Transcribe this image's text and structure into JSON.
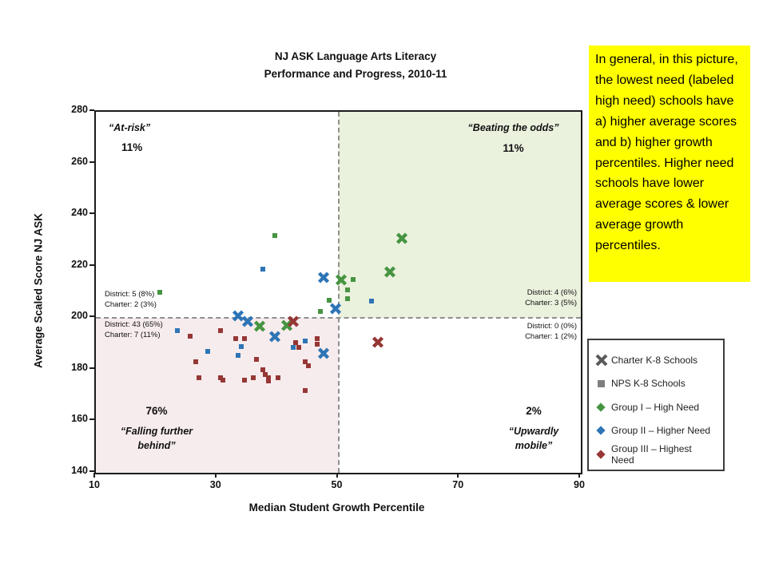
{
  "chart_data": {
    "type": "scatter",
    "title_line1": "NJ ASK Language Arts Literacy",
    "title_line2": "Performance and Progress, 2010-11",
    "xlabel": "Median Student Growth Percentile",
    "ylabel": "Average Scaled Score NJ ASK",
    "xlim": [
      10,
      90
    ],
    "ylim": [
      140,
      280
    ],
    "x_ticks": [
      10,
      30,
      50,
      70,
      90
    ],
    "y_ticks": [
      280,
      260,
      240,
      220,
      200,
      180,
      160,
      140
    ],
    "reference_lines": {
      "x": 50,
      "y": 200
    },
    "quadrant_fill": {
      "top_right": "#eaf1dd",
      "bottom_left": "#f7eced"
    },
    "group_colors": {
      "I": "#469441",
      "II": "#2e75b6",
      "III": "#953735"
    },
    "marker_types": {
      "charter": "x",
      "nps": "square"
    },
    "points": [
      {
        "x": 47.5,
        "y": 215,
        "group": "II",
        "sector": "charter"
      },
      {
        "x": 49.5,
        "y": 203,
        "group": "II",
        "sector": "charter"
      },
      {
        "x": 33.5,
        "y": 200,
        "group": "II",
        "sector": "charter"
      },
      {
        "x": 35,
        "y": 198,
        "group": "II",
        "sector": "charter"
      },
      {
        "x": 39.5,
        "y": 192,
        "group": "II",
        "sector": "charter"
      },
      {
        "x": 47.5,
        "y": 185.5,
        "group": "II",
        "sector": "charter"
      },
      {
        "x": 50.5,
        "y": 214,
        "group": "I",
        "sector": "charter"
      },
      {
        "x": 60.5,
        "y": 230,
        "group": "I",
        "sector": "charter"
      },
      {
        "x": 58.5,
        "y": 217,
        "group": "I",
        "sector": "charter"
      },
      {
        "x": 37,
        "y": 196,
        "group": "I",
        "sector": "charter"
      },
      {
        "x": 41.5,
        "y": 196.5,
        "group": "I",
        "sector": "charter"
      },
      {
        "x": 42.5,
        "y": 198,
        "group": "III",
        "sector": "charter"
      },
      {
        "x": 56.5,
        "y": 190,
        "group": "III",
        "sector": "charter"
      },
      {
        "x": 20.5,
        "y": 210,
        "group": "I",
        "sector": "nps"
      },
      {
        "x": 39.5,
        "y": 232,
        "group": "I",
        "sector": "nps"
      },
      {
        "x": 52.5,
        "y": 215,
        "group": "I",
        "sector": "nps"
      },
      {
        "x": 51.5,
        "y": 211,
        "group": "I",
        "sector": "nps"
      },
      {
        "x": 51.5,
        "y": 207.5,
        "group": "I",
        "sector": "nps"
      },
      {
        "x": 48.5,
        "y": 207,
        "group": "I",
        "sector": "nps"
      },
      {
        "x": 47,
        "y": 202.5,
        "group": "I",
        "sector": "nps"
      },
      {
        "x": 37.5,
        "y": 219,
        "group": "II",
        "sector": "nps"
      },
      {
        "x": 55.5,
        "y": 206.5,
        "group": "II",
        "sector": "nps"
      },
      {
        "x": 23.5,
        "y": 195,
        "group": "II",
        "sector": "nps"
      },
      {
        "x": 28.5,
        "y": 187,
        "group": "II",
        "sector": "nps"
      },
      {
        "x": 33.5,
        "y": 185.5,
        "group": "II",
        "sector": "nps"
      },
      {
        "x": 34,
        "y": 189,
        "group": "II",
        "sector": "nps"
      },
      {
        "x": 42.5,
        "y": 188.5,
        "group": "II",
        "sector": "nps"
      },
      {
        "x": 44.5,
        "y": 191,
        "group": "II",
        "sector": "nps"
      },
      {
        "x": 30.5,
        "y": 195,
        "group": "III",
        "sector": "nps"
      },
      {
        "x": 25.5,
        "y": 193,
        "group": "III",
        "sector": "nps"
      },
      {
        "x": 33,
        "y": 192,
        "group": "III",
        "sector": "nps"
      },
      {
        "x": 34.5,
        "y": 192,
        "group": "III",
        "sector": "nps"
      },
      {
        "x": 43,
        "y": 190.5,
        "group": "III",
        "sector": "nps"
      },
      {
        "x": 43.5,
        "y": 188.5,
        "group": "III",
        "sector": "nps"
      },
      {
        "x": 46.5,
        "y": 192,
        "group": "III",
        "sector": "nps"
      },
      {
        "x": 46.5,
        "y": 190,
        "group": "III",
        "sector": "nps"
      },
      {
        "x": 26.5,
        "y": 183,
        "group": "III",
        "sector": "nps"
      },
      {
        "x": 36.5,
        "y": 184,
        "group": "III",
        "sector": "nps"
      },
      {
        "x": 44.5,
        "y": 183,
        "group": "III",
        "sector": "nps"
      },
      {
        "x": 45,
        "y": 181.5,
        "group": "III",
        "sector": "nps"
      },
      {
        "x": 37.5,
        "y": 180,
        "group": "III",
        "sector": "nps"
      },
      {
        "x": 38,
        "y": 178,
        "group": "III",
        "sector": "nps"
      },
      {
        "x": 27,
        "y": 177,
        "group": "III",
        "sector": "nps"
      },
      {
        "x": 30.5,
        "y": 177,
        "group": "III",
        "sector": "nps"
      },
      {
        "x": 31,
        "y": 176,
        "group": "III",
        "sector": "nps"
      },
      {
        "x": 34.5,
        "y": 176,
        "group": "III",
        "sector": "nps"
      },
      {
        "x": 36,
        "y": 177,
        "group": "III",
        "sector": "nps"
      },
      {
        "x": 38.5,
        "y": 177,
        "group": "III",
        "sector": "nps"
      },
      {
        "x": 38.5,
        "y": 175.5,
        "group": "III",
        "sector": "nps"
      },
      {
        "x": 40,
        "y": 177,
        "group": "III",
        "sector": "nps"
      },
      {
        "x": 44.5,
        "y": 172,
        "group": "III",
        "sector": "nps"
      }
    ]
  },
  "quadrants": {
    "top_left": {
      "label": "“At-risk”",
      "pct": "11%"
    },
    "top_right": {
      "label": "“Beating the odds”",
      "pct": "11%"
    },
    "bottom_left": {
      "pct": "76%",
      "label_line1": "“Falling further",
      "label_line2": "behind”"
    },
    "bottom_right": {
      "pct": "2%",
      "label_line1": "“Upwardly",
      "label_line2": "mobile”"
    }
  },
  "counts": {
    "left_above": [
      "District: 5 (8%)",
      "Charter: 2 (3%)"
    ],
    "left_below": [
      "District: 43 (65%)",
      "Charter: 7 (11%)"
    ],
    "right_above": [
      "District: 4 (6%)",
      "Charter: 3 (5%)"
    ],
    "right_below": [
      "District: 0 (0%)",
      "Charter: 1 (2%)"
    ]
  },
  "legend": {
    "items": [
      {
        "marker": "x",
        "color": "#595959",
        "label": "Charter K-8 Schools"
      },
      {
        "marker": "square",
        "color": "#7f7f7f",
        "label": "NPS K-8 Schools"
      },
      {
        "marker": "diamond",
        "color": "#469441",
        "label": "Group I – High Need"
      },
      {
        "marker": "diamond",
        "color": "#2e75b6",
        "label": "Group II – Higher Need"
      },
      {
        "marker": "diamond",
        "color": "#953735",
        "label": "Group III – Highest Need"
      }
    ]
  },
  "note": {
    "background": "#ffff00",
    "text": "In general, in this picture, the lowest need (labeled high need) schools have a) higher average scores and b) higher growth percentiles.  Higher need schools have lower average scores & lower average growth percentiles."
  }
}
